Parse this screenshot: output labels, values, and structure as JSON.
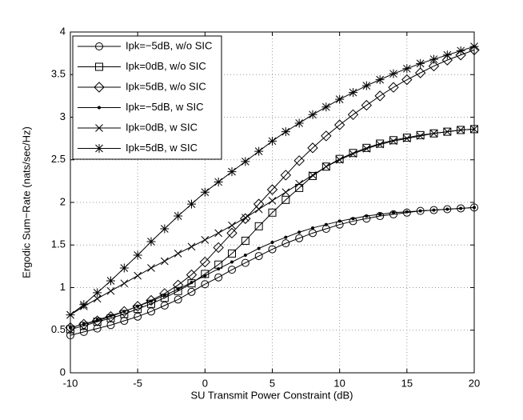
{
  "chart_data": {
    "type": "line",
    "xlabel": "SU Transmit Power Constraint (dB)",
    "ylabel": "Ergodic Sum−Rate (nats/sec/Hz)",
    "x": [
      -10,
      -9,
      -8,
      -7,
      -6,
      -5,
      -4,
      -3,
      -2,
      -1,
      0,
      1,
      2,
      3,
      4,
      5,
      6,
      7,
      8,
      9,
      10,
      11,
      12,
      13,
      14,
      15,
      16,
      17,
      18,
      19,
      20
    ],
    "xlim": [
      -10,
      20
    ],
    "xticks": [
      -10,
      -5,
      0,
      5,
      10,
      15,
      20
    ],
    "ylim": [
      0,
      4
    ],
    "yticks": [
      0,
      0.5,
      1,
      1.5,
      2,
      2.5,
      3,
      3.5,
      4
    ],
    "grid": true,
    "legend": "upper left",
    "series": [
      {
        "name": "Ipk=−5dB, w/o SIC",
        "color": "#000000",
        "marker": "circle",
        "values": [
          0.44,
          0.48,
          0.52,
          0.56,
          0.61,
          0.66,
          0.72,
          0.79,
          0.86,
          0.95,
          1.04,
          1.12,
          1.21,
          1.29,
          1.37,
          1.45,
          1.52,
          1.58,
          1.64,
          1.69,
          1.74,
          1.78,
          1.81,
          1.84,
          1.86,
          1.88,
          1.9,
          1.91,
          1.92,
          1.93,
          1.94
        ]
      },
      {
        "name": "Ipk=0dB, w/o SIC",
        "color": "#000000",
        "marker": "square",
        "values": [
          0.51,
          0.55,
          0.6,
          0.64,
          0.69,
          0.75,
          0.81,
          0.88,
          0.96,
          1.05,
          1.16,
          1.27,
          1.4,
          1.55,
          1.72,
          1.88,
          2.03,
          2.17,
          2.31,
          2.42,
          2.51,
          2.58,
          2.64,
          2.69,
          2.73,
          2.76,
          2.79,
          2.81,
          2.83,
          2.85,
          2.86
        ]
      },
      {
        "name": "Ipk=5dB, w/o SIC",
        "color": "#000000",
        "marker": "diamond",
        "values": [
          0.53,
          0.57,
          0.61,
          0.66,
          0.72,
          0.78,
          0.85,
          0.93,
          1.03,
          1.15,
          1.3,
          1.47,
          1.64,
          1.81,
          1.98,
          2.15,
          2.32,
          2.49,
          2.64,
          2.78,
          2.91,
          3.03,
          3.14,
          3.25,
          3.35,
          3.44,
          3.52,
          3.6,
          3.67,
          3.73,
          3.79
        ]
      },
      {
        "name": "Ipk=−5dB, w SIC",
        "color": "#000000",
        "marker": "dot",
        "values": [
          0.53,
          0.57,
          0.62,
          0.67,
          0.72,
          0.78,
          0.84,
          0.91,
          0.98,
          1.06,
          1.14,
          1.22,
          1.3,
          1.38,
          1.46,
          1.53,
          1.59,
          1.65,
          1.7,
          1.74,
          1.78,
          1.81,
          1.84,
          1.86,
          1.88,
          1.89,
          1.9,
          1.91,
          1.92,
          1.93,
          1.94
        ]
      },
      {
        "name": "Ipk=0dB, w SIC",
        "color": "#000000",
        "marker": "x",
        "values": [
          0.68,
          0.78,
          0.87,
          0.96,
          1.05,
          1.14,
          1.23,
          1.31,
          1.4,
          1.48,
          1.56,
          1.64,
          1.73,
          1.82,
          1.92,
          2.02,
          2.12,
          2.22,
          2.32,
          2.42,
          2.5,
          2.57,
          2.63,
          2.68,
          2.72,
          2.75,
          2.78,
          2.81,
          2.83,
          2.85,
          2.86
        ]
      },
      {
        "name": "Ipk=5dB, w SIC",
        "color": "#000000",
        "marker": "star",
        "values": [
          0.68,
          0.8,
          0.94,
          1.08,
          1.23,
          1.38,
          1.54,
          1.69,
          1.84,
          1.98,
          2.12,
          2.24,
          2.36,
          2.48,
          2.6,
          2.72,
          2.83,
          2.93,
          3.03,
          3.12,
          3.21,
          3.29,
          3.37,
          3.44,
          3.51,
          3.57,
          3.63,
          3.68,
          3.73,
          3.78,
          3.83
        ]
      }
    ]
  }
}
